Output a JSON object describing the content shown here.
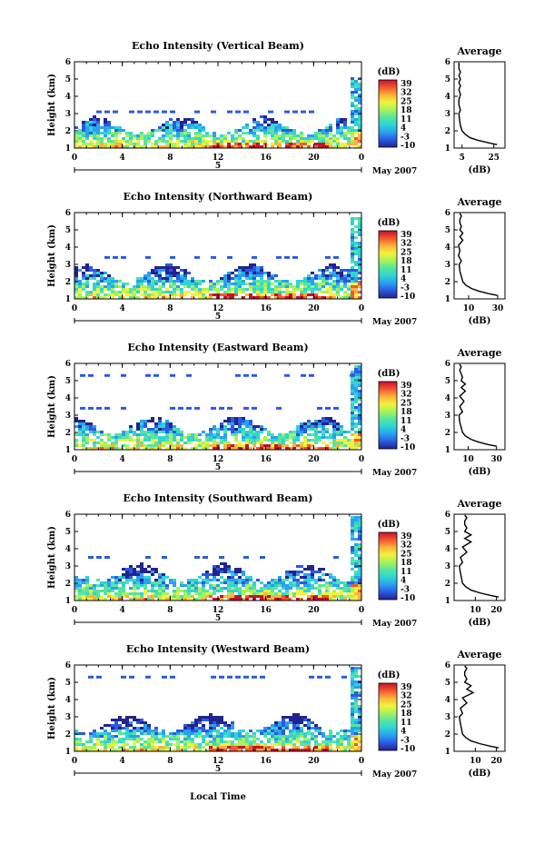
{
  "x_label": "Local Time",
  "colorbar": {
    "unit": "(dB)",
    "ticks": [
      "39",
      "32",
      "25",
      "18",
      "11",
      "4",
      "-3",
      "-10"
    ],
    "stops": [
      "#23238e",
      "#2b5ae0",
      "#29a0f2",
      "#2fd4d4",
      "#55e5a0",
      "#a8f25a",
      "#f2f23c",
      "#fbb23b",
      "#f2562e",
      "#c8102e"
    ]
  },
  "chart_data": [
    {
      "type": "heatmap",
      "title": "Echo Intensity (Vertical Beam)",
      "ylabel": "Height (km)",
      "xticks": [
        "0",
        "4",
        "8",
        "12",
        "16",
        "20",
        "0"
      ],
      "ylim": [
        1,
        6
      ],
      "yticks": [
        "1",
        "2",
        "3",
        "4",
        "5",
        "6"
      ],
      "xlim": [
        0,
        24
      ],
      "date_mark": "5",
      "date_label": "May 2007",
      "grid": false,
      "features": {
        "low_top": 2.4,
        "plume": [
          23.0,
          24.8,
          5.2
        ],
        "base_lines": [
          3.1
        ]
      },
      "profile": {
        "title": "Average",
        "xlabel": "(dB)",
        "xticks": [
          "5",
          "25"
        ],
        "xlim": [
          0,
          32
        ],
        "ylim": [
          1,
          6
        ],
        "yticks": [
          "1",
          "2",
          "3",
          "4",
          "5",
          "6"
        ],
        "x": [
          27,
          22,
          15,
          10,
          7,
          5,
          4,
          3.5,
          3,
          4,
          3,
          3,
          4,
          3,
          4,
          3,
          4,
          3,
          4,
          3,
          3,
          3
        ],
        "y": [
          1.2,
          1.3,
          1.45,
          1.6,
          1.8,
          2.0,
          2.3,
          2.6,
          3.0,
          3.2,
          3.5,
          3.8,
          4.1,
          4.4,
          4.6,
          4.8,
          5.0,
          5.2,
          5.4,
          5.6,
          5.8,
          5.95
        ]
      }
    },
    {
      "type": "heatmap",
      "title": "Echo Intensity (Northward Beam)",
      "ylabel": "Height (km)",
      "xticks": [
        "0",
        "4",
        "8",
        "12",
        "16",
        "20",
        "0"
      ],
      "ylim": [
        1,
        6
      ],
      "yticks": [
        "1",
        "2",
        "3",
        "4",
        "5",
        "6"
      ],
      "xlim": [
        0,
        24
      ],
      "date_mark": "5",
      "date_label": "May 2007",
      "grid": false,
      "features": {
        "low_top": 2.6,
        "plume": [
          23.0,
          25.0,
          5.8
        ],
        "base_lines": [
          3.4
        ]
      },
      "profile": {
        "title": "Average",
        "xlabel": "(dB)",
        "xticks": [
          "10",
          "30"
        ],
        "xlim": [
          0,
          35
        ],
        "ylim": [
          1,
          6
        ],
        "yticks": [
          "1",
          "2",
          "3",
          "4",
          "5",
          "6"
        ],
        "x": [
          30,
          24,
          17,
          12,
          8,
          6,
          5,
          4,
          3.5,
          5,
          3,
          4,
          3,
          6,
          4,
          6,
          4,
          5,
          4,
          4,
          5,
          4
        ],
        "y": [
          1.2,
          1.3,
          1.45,
          1.6,
          1.8,
          2.0,
          2.3,
          2.6,
          3.0,
          3.2,
          3.5,
          3.8,
          4.1,
          4.4,
          4.6,
          4.8,
          5.0,
          5.2,
          5.4,
          5.6,
          5.8,
          5.95
        ]
      }
    },
    {
      "type": "heatmap",
      "title": "Echo Intensity (Eastward Beam)",
      "ylabel": "Height (km)",
      "xticks": [
        "0",
        "4",
        "8",
        "12",
        "16",
        "20",
        "0"
      ],
      "ylim": [
        1,
        6
      ],
      "yticks": [
        "1",
        "2",
        "3",
        "4",
        "5",
        "6"
      ],
      "xlim": [
        0,
        24
      ],
      "date_mark": "5",
      "date_label": "May 2007",
      "grid": false,
      "features": {
        "low_top": 2.5,
        "plume": [
          23.0,
          25.0,
          5.9
        ],
        "base_lines": [
          5.3,
          3.4
        ]
      },
      "profile": {
        "title": "Average",
        "xlabel": "(dB)",
        "xticks": [
          "10",
          "30"
        ],
        "xlim": [
          0,
          36
        ],
        "ylim": [
          1,
          6
        ],
        "yticks": [
          "1",
          "2",
          "3",
          "4",
          "5",
          "6"
        ],
        "x": [
          30,
          24,
          17,
          12,
          8,
          6,
          5,
          4,
          3.5,
          6,
          4,
          7,
          4,
          8,
          5,
          8,
          5,
          6,
          5,
          4,
          5,
          4
        ],
        "y": [
          1.2,
          1.3,
          1.45,
          1.6,
          1.8,
          2.0,
          2.3,
          2.6,
          3.0,
          3.2,
          3.5,
          3.8,
          4.1,
          4.4,
          4.6,
          4.8,
          5.0,
          5.2,
          5.4,
          5.6,
          5.8,
          5.95
        ]
      }
    },
    {
      "type": "heatmap",
      "title": "Echo Intensity (Southward Beam)",
      "ylabel": "Height (km)",
      "xticks": [
        "0",
        "4",
        "8",
        "12",
        "16",
        "20",
        "0"
      ],
      "ylim": [
        1,
        6
      ],
      "yticks": [
        "1",
        "2",
        "3",
        "4",
        "5",
        "6"
      ],
      "xlim": [
        0,
        24
      ],
      "date_mark": "5",
      "date_label": "May 2007",
      "grid": false,
      "features": {
        "low_top": 2.7,
        "plume": [
          23.0,
          25.0,
          5.9
        ],
        "base_lines": [
          3.5
        ]
      },
      "profile": {
        "title": "Average",
        "xlabel": "(dB)",
        "xticks": [
          "10",
          "20"
        ],
        "xlim": [
          0,
          24
        ],
        "ylim": [
          1,
          6
        ],
        "yticks": [
          "1",
          "2",
          "3",
          "4",
          "5",
          "6"
        ],
        "x": [
          21,
          17,
          12,
          8,
          5.5,
          4,
          3.5,
          3,
          2.5,
          4,
          3,
          6,
          4,
          8,
          5,
          8,
          5,
          6,
          5,
          5,
          6,
          5
        ],
        "y": [
          1.2,
          1.3,
          1.45,
          1.6,
          1.8,
          2.0,
          2.3,
          2.6,
          3.0,
          3.2,
          3.5,
          3.8,
          4.1,
          4.4,
          4.6,
          4.8,
          5.0,
          5.2,
          5.4,
          5.6,
          5.8,
          5.95
        ]
      }
    },
    {
      "type": "heatmap",
      "title": "Echo Intensity (Westward Beam)",
      "ylabel": "Height (km)",
      "xticks": [
        "0",
        "4",
        "8",
        "12",
        "16",
        "20",
        "0"
      ],
      "ylim": [
        1,
        6
      ],
      "yticks": [
        "1",
        "2",
        "3",
        "4",
        "5",
        "6"
      ],
      "xlim": [
        0,
        24
      ],
      "date_mark": "5",
      "date_label": "May 2007",
      "grid": false,
      "features": {
        "low_top": 2.7,
        "plume": [
          23.0,
          25.0,
          5.9
        ],
        "base_lines": [
          5.3
        ]
      },
      "profile": {
        "title": "Average",
        "xlabel": "(dB)",
        "xticks": [
          "10",
          "20"
        ],
        "xlim": [
          0,
          24
        ],
        "ylim": [
          1,
          6
        ],
        "yticks": [
          "1",
          "2",
          "3",
          "4",
          "5",
          "6"
        ],
        "x": [
          21,
          17,
          12,
          8,
          5.5,
          4,
          3.5,
          3,
          2.5,
          4,
          3,
          6,
          4,
          9,
          6,
          8,
          5,
          6,
          5,
          5,
          6,
          5
        ],
        "y": [
          1.2,
          1.3,
          1.45,
          1.6,
          1.8,
          2.0,
          2.3,
          2.6,
          3.0,
          3.2,
          3.5,
          3.8,
          4.1,
          4.4,
          4.6,
          4.8,
          5.0,
          5.2,
          5.4,
          5.6,
          5.8,
          5.95
        ]
      }
    }
  ]
}
